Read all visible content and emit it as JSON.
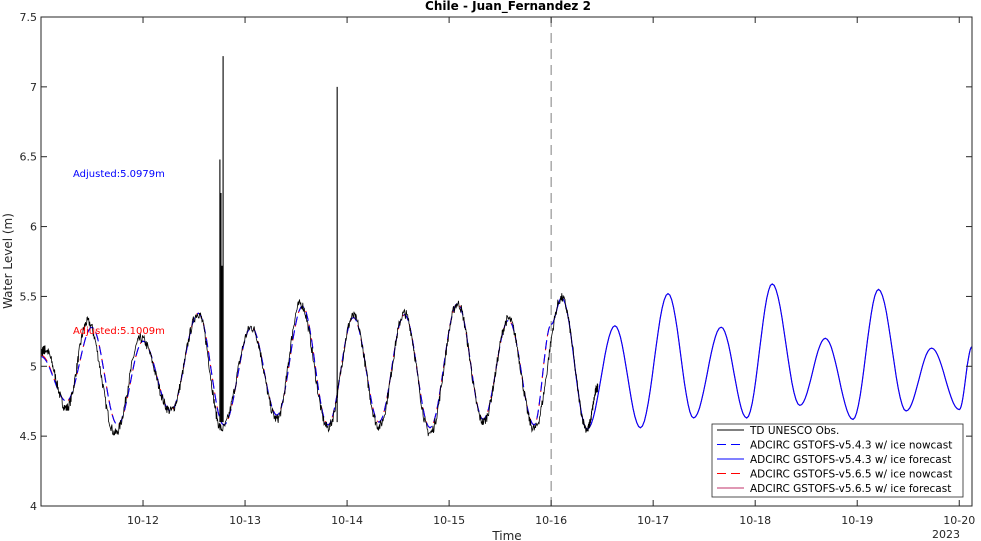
{
  "chart_data": {
    "type": "line",
    "title": "Chile - Juan_Fernandez 2",
    "xlabel": "Time",
    "ylabel": "Water Level (m)",
    "year_label": "2023",
    "xlim": [
      "2023-10-11T00:00",
      "2023-10-20T03:00"
    ],
    "ylim": [
      4,
      7.5
    ],
    "x_ticks": [
      {
        "label": "10-12",
        "value": "2023-10-12T00:00"
      },
      {
        "label": "10-13",
        "value": "2023-10-13T00:00"
      },
      {
        "label": "10-14",
        "value": "2023-10-14T00:00"
      },
      {
        "label": "10-15",
        "value": "2023-10-15T00:00"
      },
      {
        "label": "10-16",
        "value": "2023-10-16T00:00"
      },
      {
        "label": "10-17",
        "value": "2023-10-17T00:00"
      },
      {
        "label": "10-18",
        "value": "2023-10-18T00:00"
      },
      {
        "label": "10-19",
        "value": "2023-10-19T00:00"
      },
      {
        "label": "10-20",
        "value": "2023-10-20T00:00"
      }
    ],
    "y_ticks": [
      "4",
      "4.5",
      "5",
      "5.5",
      "6",
      "6.5",
      "7",
      "7.5"
    ],
    "forecast_start": "2023-10-16T00:00",
    "legend_position": "bottom-right",
    "annotations": [
      {
        "text": "Adjusted:5.0979m",
        "color": "#0000ff"
      },
      {
        "text": "Adjusted:5.1009m",
        "color": "#ff0000"
      }
    ],
    "series": [
      {
        "name": "TD UNESCO Obs.",
        "color": "#000000",
        "style": "solid",
        "x": [
          "2023-10-11T00:00",
          "2023-10-11T01:00",
          "2023-10-11T06:00",
          "2023-10-11T11:00",
          "2023-10-11T17:30",
          "2023-10-11T23:30",
          "2023-10-12T06:30",
          "2023-10-12T13:00",
          "2023-10-12T18:30",
          "2023-10-13T01:30",
          "2023-10-13T07:30",
          "2023-10-13T13:00",
          "2023-10-13T19:30",
          "2023-10-14T01:30",
          "2023-10-14T07:30",
          "2023-10-14T13:30",
          "2023-10-14T19:30",
          "2023-10-15T02:00",
          "2023-10-15T08:00",
          "2023-10-15T14:00",
          "2023-10-15T20:00",
          "2023-10-16T02:30",
          "2023-10-16T08:30",
          "2023-10-16T11:00"
        ],
        "y": [
          5.1,
          5.12,
          4.7,
          5.32,
          4.52,
          5.2,
          4.68,
          5.38,
          4.55,
          5.28,
          4.62,
          5.45,
          4.56,
          5.36,
          4.57,
          5.38,
          4.52,
          5.45,
          4.6,
          5.34,
          4.55,
          5.49,
          4.55,
          4.85
        ],
        "spikes": [
          {
            "x": "2023-10-12T18:05",
            "y": 6.48
          },
          {
            "x": "2023-10-12T18:20",
            "y": 6.24
          },
          {
            "x": "2023-10-12T18:35",
            "y": 5.72
          },
          {
            "x": "2023-10-12T18:50",
            "y": 7.22
          },
          {
            "x": "2023-10-13T21:40",
            "y": 7.0
          }
        ]
      },
      {
        "name": "ADCIRC GSTOFS-v5.4.3 w/ ice nowcast",
        "color": "#0000ff",
        "style": "dashed",
        "x": [
          "2023-10-11T00:00",
          "2023-10-11T06:00",
          "2023-10-11T12:00",
          "2023-10-11T18:00",
          "2023-10-12T00:00",
          "2023-10-12T06:30",
          "2023-10-12T13:00",
          "2023-10-12T19:00",
          "2023-10-13T01:30",
          "2023-10-13T07:30",
          "2023-10-13T13:30",
          "2023-10-13T19:30",
          "2023-10-14T01:30",
          "2023-10-14T07:30",
          "2023-10-14T13:30",
          "2023-10-14T19:30",
          "2023-10-15T02:00",
          "2023-10-15T08:00",
          "2023-10-15T14:00",
          "2023-10-15T20:00",
          "2023-10-16T00:00"
        ],
        "y": [
          5.07,
          4.75,
          5.28,
          4.58,
          5.18,
          4.68,
          5.38,
          4.58,
          5.28,
          4.65,
          5.43,
          4.58,
          5.35,
          4.6,
          5.37,
          4.56,
          5.45,
          4.62,
          5.33,
          4.58,
          5.3
        ]
      },
      {
        "name": "ADCIRC GSTOFS-v5.4.3 w/ ice forecast",
        "color": "#0000ff",
        "style": "solid",
        "x": [
          "2023-10-16T00:00",
          "2023-10-16T02:30",
          "2023-10-16T08:30",
          "2023-10-16T15:00",
          "2023-10-16T21:00",
          "2023-10-17T03:30",
          "2023-10-17T09:30",
          "2023-10-17T16:00",
          "2023-10-17T22:00",
          "2023-10-18T04:00",
          "2023-10-18T10:30",
          "2023-10-18T16:30",
          "2023-10-18T23:00",
          "2023-10-19T05:00",
          "2023-10-19T11:30",
          "2023-10-19T17:30",
          "2023-10-20T00:00",
          "2023-10-20T03:00"
        ],
        "y": [
          5.3,
          5.49,
          4.55,
          5.29,
          4.56,
          5.52,
          4.63,
          5.28,
          4.63,
          5.59,
          4.72,
          5.2,
          4.62,
          5.55,
          4.68,
          5.13,
          4.69,
          5.14
        ]
      },
      {
        "name": "ADCIRC GSTOFS-v5.6.5 w/ ice nowcast",
        "color": "#ff0000",
        "style": "dashed",
        "x": [
          "2023-10-11T00:00",
          "2023-10-11T06:00",
          "2023-10-11T12:00",
          "2023-10-11T18:00",
          "2023-10-12T00:00",
          "2023-10-12T06:30",
          "2023-10-12T13:00",
          "2023-10-12T19:00",
          "2023-10-13T01:30",
          "2023-10-13T07:30",
          "2023-10-13T13:30",
          "2023-10-13T19:30",
          "2023-10-14T01:30",
          "2023-10-14T07:30",
          "2023-10-14T13:30",
          "2023-10-14T19:30",
          "2023-10-15T02:00",
          "2023-10-15T08:00",
          "2023-10-15T14:00",
          "2023-10-15T20:00",
          "2023-10-16T00:00"
        ],
        "y": [
          5.08,
          4.75,
          5.28,
          4.58,
          5.18,
          4.68,
          5.38,
          4.58,
          5.28,
          4.65,
          5.43,
          4.58,
          5.35,
          4.6,
          5.37,
          4.56,
          5.45,
          4.62,
          5.33,
          4.58,
          5.3
        ]
      },
      {
        "name": "ADCIRC GSTOFS-v5.6.5 w/ ice forecast",
        "color": "#c0306a",
        "style": "solid",
        "x": [
          "2023-10-16T00:00",
          "2023-10-16T02:30",
          "2023-10-16T08:30",
          "2023-10-16T15:00",
          "2023-10-16T21:00",
          "2023-10-17T03:30",
          "2023-10-17T09:30",
          "2023-10-17T16:00",
          "2023-10-17T22:00",
          "2023-10-18T04:00",
          "2023-10-18T10:30",
          "2023-10-18T16:30",
          "2023-10-18T23:00",
          "2023-10-19T05:00",
          "2023-10-19T11:30",
          "2023-10-19T17:30",
          "2023-10-20T00:00",
          "2023-10-20T03:00"
        ],
        "y": [
          5.3,
          5.49,
          4.55,
          5.29,
          4.56,
          5.52,
          4.63,
          5.28,
          4.63,
          5.59,
          4.72,
          5.2,
          4.62,
          5.55,
          4.68,
          5.13,
          4.69,
          5.14
        ]
      }
    ]
  }
}
